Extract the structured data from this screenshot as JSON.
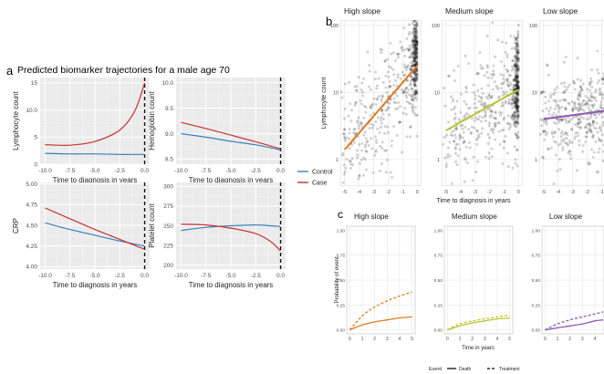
{
  "panel_a": {
    "letter": "a",
    "title": "Predicted biomarker trajectories for a male age 70",
    "xlabel": "Time to diagnosis in years",
    "legend": [
      {
        "label": "Control",
        "color": "#3a7fc1"
      },
      {
        "label": "Case",
        "color": "#c8322f"
      }
    ]
  },
  "panel_b": {
    "letter": "b",
    "xlabel": "Time to diagnosis in years",
    "ylabel": "Lymphocyte count"
  },
  "panel_c": {
    "letter": "c",
    "xlabel": "Time in years",
    "ylabel": "Probability of event",
    "legend_title": "Event",
    "legend": [
      {
        "label": "Death",
        "style": "solid"
      },
      {
        "label": "Treatment",
        "style": "dashed"
      }
    ]
  },
  "chart_data": [
    {
      "type": "line",
      "panel": "a",
      "ylabel": "Lymphocyte count",
      "x": [
        -10,
        -7.5,
        -5,
        -2.5,
        -1,
        0
      ],
      "xticks": [
        "-10.0",
        "-7.5",
        "-5.0",
        "-2.5",
        "0.0"
      ],
      "ylim": [
        0,
        16
      ],
      "yticks": [
        0,
        5,
        10,
        15
      ],
      "series": [
        {
          "name": "Control",
          "color": "#3a7fc1",
          "values": [
            2.0,
            1.9,
            1.9,
            1.8,
            1.8,
            1.8
          ]
        },
        {
          "name": "Case",
          "color": "#c8322f",
          "values": [
            3.6,
            3.5,
            4.2,
            6.3,
            9.8,
            15.0
          ]
        }
      ]
    },
    {
      "type": "line",
      "panel": "a",
      "ylabel": "Hemoglobin count",
      "x": [
        -10,
        -7.5,
        -5,
        -2.5,
        0
      ],
      "xticks": [
        "-10.0",
        "-7.5",
        "-5.0",
        "-2.5",
        "0.0"
      ],
      "ylim": [
        8.4,
        10.1
      ],
      "yticks": [
        8.5,
        9.0,
        9.5,
        10.0
      ],
      "series": [
        {
          "name": "Control",
          "color": "#3a7fc1",
          "values": [
            9.0,
            8.93,
            8.85,
            8.78,
            8.68
          ]
        },
        {
          "name": "Case",
          "color": "#c8322f",
          "values": [
            9.22,
            9.1,
            8.97,
            8.84,
            8.7
          ]
        }
      ]
    },
    {
      "type": "line",
      "panel": "a",
      "ylabel": "CRP",
      "x": [
        -10,
        -7.5,
        -5,
        -2.5,
        0
      ],
      "xticks": [
        "-10.0",
        "-7.5",
        "-5.0",
        "-2.5",
        "0.0"
      ],
      "ylim": [
        3.97,
        5.02
      ],
      "yticks": [
        4.0,
        4.25,
        4.5,
        4.75,
        5.0
      ],
      "ytick_labels": [
        "4.00",
        "4.25",
        "4.50",
        "4.75",
        "5.00"
      ],
      "series": [
        {
          "name": "Control",
          "color": "#3a7fc1",
          "values": [
            4.53,
            4.45,
            4.38,
            4.31,
            4.25
          ]
        },
        {
          "name": "Case",
          "color": "#c8322f",
          "values": [
            4.71,
            4.58,
            4.45,
            4.33,
            4.21
          ]
        }
      ]
    },
    {
      "type": "line",
      "panel": "a",
      "ylabel": "Platelet count",
      "x": [
        -10,
        -7.5,
        -5,
        -2.5,
        -1,
        0
      ],
      "xticks": [
        "-10.0",
        "-7.5",
        "-5.0",
        "-2.5",
        "0.0"
      ],
      "ylim": [
        195,
        305
      ],
      "yticks": [
        200,
        225,
        250,
        275,
        300
      ],
      "series": [
        {
          "name": "Control",
          "color": "#3a7fc1",
          "values": [
            244,
            248,
            250,
            251,
            250,
            249
          ]
        },
        {
          "name": "Case",
          "color": "#c8322f",
          "values": [
            252,
            251,
            247,
            240,
            230,
            218
          ]
        }
      ]
    },
    {
      "type": "scatter",
      "panel": "b",
      "title": "High slope",
      "xlim": [
        -5.3,
        0.3
      ],
      "xticks": [
        -5,
        -4,
        -3,
        -2,
        -1,
        0
      ],
      "ylog": true,
      "ylim": [
        0.4,
        120
      ],
      "yticks": [
        1,
        10,
        100
      ],
      "fit_line": {
        "color": "#e07b1f",
        "x": [
          -5,
          0
        ],
        "y": [
          1.4,
          25
        ]
      }
    },
    {
      "type": "scatter",
      "panel": "b",
      "title": "Medium slope",
      "xlim": [
        -5.3,
        0.3
      ],
      "xticks": [
        -5,
        -4,
        -3,
        -2,
        -1,
        0
      ],
      "ylog": true,
      "ylim": [
        0.4,
        120
      ],
      "yticks": [
        1,
        10,
        100
      ],
      "fit_line": {
        "color": "#b9c531",
        "x": [
          -5,
          0
        ],
        "y": [
          2.7,
          11
        ]
      }
    },
    {
      "type": "scatter",
      "panel": "b",
      "title": "Low slope",
      "xlim": [
        -5.3,
        0.3
      ],
      "xticks": [
        -5,
        -4,
        -3,
        -2,
        -1
      ],
      "ylog": true,
      "ylim": [
        0.4,
        120
      ],
      "yticks": [
        1,
        10,
        100
      ],
      "fit_line": {
        "color": "#8e55b5",
        "x": [
          -5,
          0
        ],
        "y": [
          4,
          5.6
        ]
      }
    },
    {
      "type": "line",
      "panel": "c",
      "title": "High slope",
      "color": "#e07b1f",
      "x": [
        0,
        1,
        2,
        3,
        4,
        5
      ],
      "xticks": [
        0,
        1,
        2,
        3,
        4,
        5
      ],
      "ylim": [
        0,
        1
      ],
      "yticks": [
        0,
        0.25,
        0.5,
        0.75,
        1.0
      ],
      "ytick_labels": [
        "0.00",
        "0.25",
        "0.50",
        "0.75",
        "1.00"
      ],
      "series": [
        {
          "name": "Death",
          "values": [
            0,
            0.05,
            0.08,
            0.1,
            0.12,
            0.13
          ]
        },
        {
          "name": "Treatment",
          "values": [
            0,
            0.14,
            0.23,
            0.29,
            0.34,
            0.38
          ]
        }
      ]
    },
    {
      "type": "line",
      "panel": "c",
      "title": "Medium slope",
      "color": "#b9c531",
      "x": [
        0,
        1,
        2,
        3,
        4,
        5
      ],
      "xticks": [
        0,
        1,
        2,
        3,
        4,
        5
      ],
      "ylim": [
        0,
        1
      ],
      "yticks": [
        0,
        0.25,
        0.5,
        0.75,
        1.0
      ],
      "ytick_labels": [
        "0.00",
        "0.25",
        "0.50",
        "0.75",
        "1.00"
      ],
      "series": [
        {
          "name": "Death",
          "values": [
            0,
            0.04,
            0.07,
            0.09,
            0.11,
            0.12
          ]
        },
        {
          "name": "Treatment",
          "values": [
            0,
            0.06,
            0.09,
            0.11,
            0.13,
            0.15
          ]
        }
      ]
    },
    {
      "type": "line",
      "panel": "c",
      "title": "Low slope",
      "color": "#8e55b5",
      "x": [
        0,
        1,
        2,
        3,
        4,
        5
      ],
      "xticks": [
        0,
        1,
        2,
        3,
        4,
        5
      ],
      "ylim": [
        0,
        1
      ],
      "yticks": [
        0,
        0.25,
        0.5,
        0.75,
        1.0
      ],
      "ytick_labels": [
        "0.00",
        "0.25",
        "0.50",
        "0.75",
        "1.00"
      ],
      "series": [
        {
          "name": "Death",
          "values": [
            0,
            0.02,
            0.04,
            0.06,
            0.09,
            0.1
          ]
        },
        {
          "name": "Treatment",
          "values": [
            0,
            0.06,
            0.1,
            0.13,
            0.16,
            0.18
          ]
        }
      ]
    }
  ]
}
